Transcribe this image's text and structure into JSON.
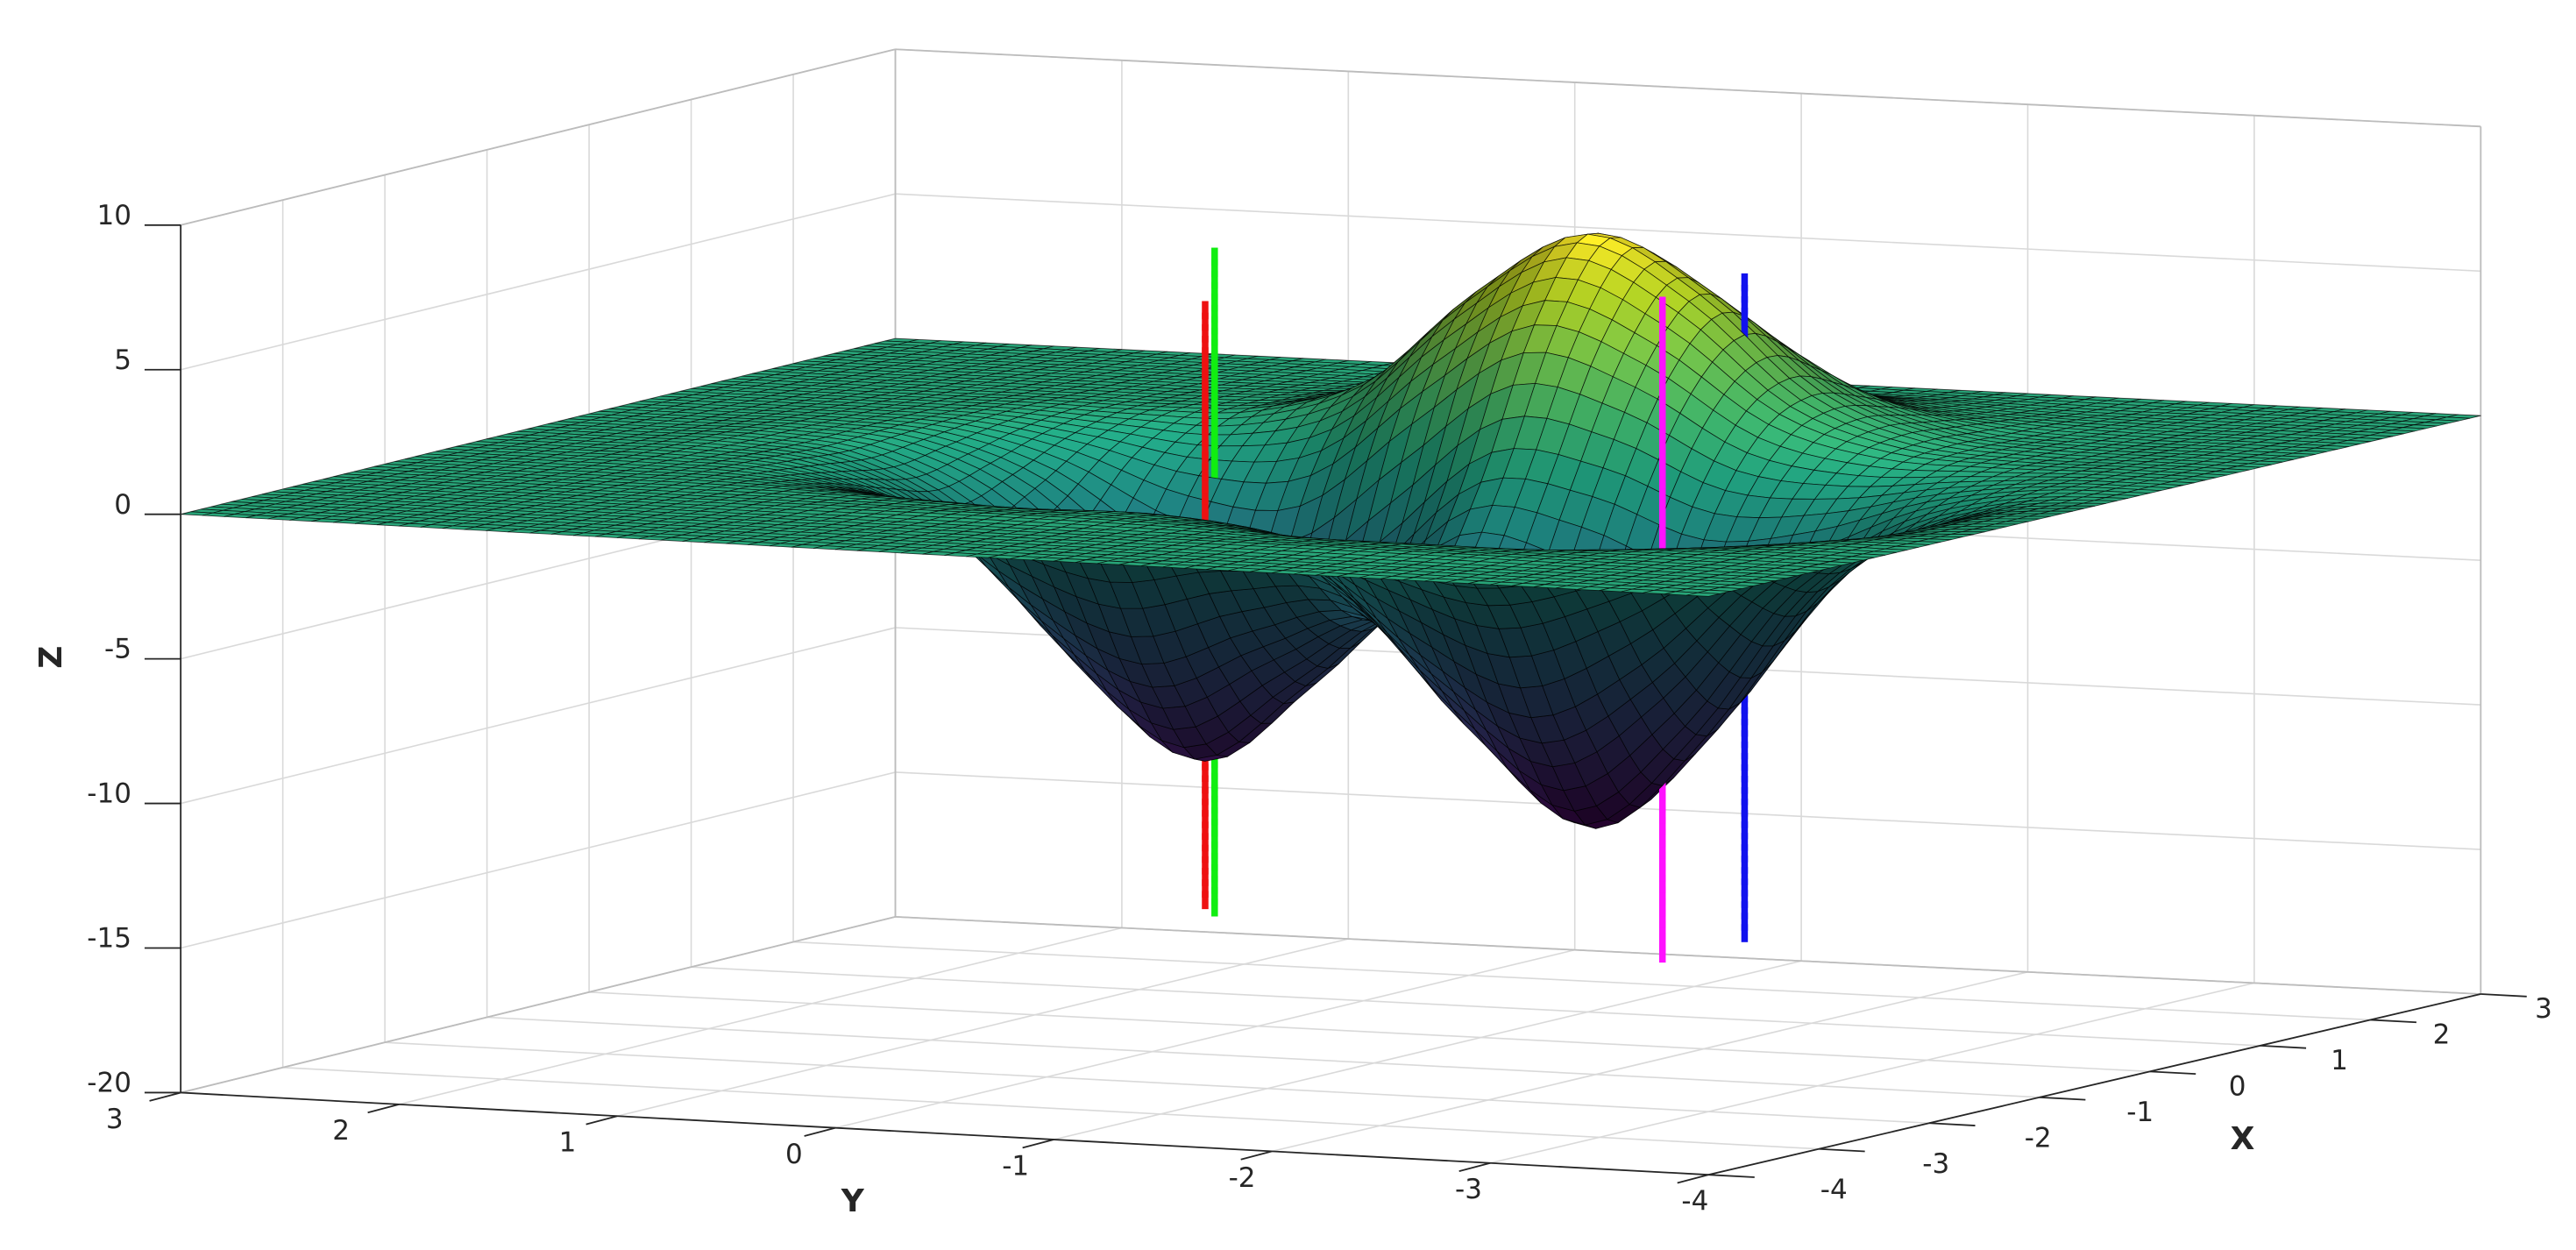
{
  "chart_data": {
    "type": "surface3d",
    "x": [
      -4,
      -3.5,
      -3,
      -2.5,
      -2,
      -1.5,
      -1,
      -0.5,
      0,
      0.5,
      1,
      1.5,
      2,
      2.5,
      3
    ],
    "y": [
      -4,
      -3.5,
      -3,
      -2.5,
      -2,
      -1.5,
      -1,
      -0.5,
      0,
      0.5,
      1,
      1.5,
      2,
      2.5,
      3
    ],
    "z": [
      [
        0,
        0,
        0,
        0,
        0,
        0,
        0,
        0,
        0,
        0,
        0,
        0,
        0,
        0,
        0
      ],
      [
        0,
        0,
        0,
        0,
        -0.1,
        -0.4,
        -0.5,
        -0.4,
        -0.1,
        0,
        0,
        0,
        0,
        0,
        0
      ],
      [
        0,
        0,
        0,
        -0.1,
        -0.7,
        -2,
        -2.9,
        -2,
        -0.7,
        -0.1,
        0,
        0,
        0,
        0,
        0
      ],
      [
        0,
        0,
        0,
        -0.4,
        -2,
        -5.8,
        -8.1,
        -5.8,
        -1.9,
        -0.1,
        0.3,
        0.2,
        0.1,
        0,
        0
      ],
      [
        0,
        0,
        0,
        -0.5,
        -2.9,
        -8.1,
        -11.5,
        -8.1,
        -2.4,
        0.7,
        1.7,
        1.2,
        0.4,
        0.1,
        0
      ],
      [
        0,
        0,
        0,
        -0.4,
        -2,
        -5.9,
        -8.5,
        -6,
        -1.1,
        3,
        5,
        3.5,
        1.2,
        0.2,
        0
      ],
      [
        0,
        0,
        0,
        -0.1,
        -0.8,
        -2.7,
        -4.7,
        -4.3,
        -0.8,
        4.2,
        6.9,
        5,
        1.7,
        0.3,
        0
      ],
      [
        0,
        0,
        0,
        0,
        -0.4,
        -2.2,
        -5.8,
        -7.5,
        -4.2,
        1.7,
        4.7,
        3.5,
        1.2,
        0.2,
        0
      ],
      [
        0,
        0,
        0,
        0,
        -0.5,
        -2.6,
        -7.4,
        -10.4,
        -7,
        -1.4,
        1.3,
        1.2,
        0.4,
        0.1,
        0
      ],
      [
        0,
        0,
        0,
        0,
        -0.3,
        -1.8,
        -5.3,
        -7.4,
        -5.2,
        -1.6,
        0,
        0.2,
        0.1,
        0,
        0
      ],
      [
        0,
        0,
        0,
        0,
        -0.1,
        -0.7,
        -1.8,
        -2.6,
        -1.8,
        -0.7,
        -0.1,
        0,
        0,
        0,
        0
      ],
      [
        0,
        0,
        0,
        0,
        0,
        -0.1,
        -0.3,
        -0.5,
        -0.3,
        -0.1,
        0,
        0,
        0,
        0,
        0
      ],
      [
        0,
        0,
        0,
        0,
        0,
        0,
        0,
        0,
        0,
        0,
        0,
        0,
        0,
        0,
        0
      ],
      [
        0,
        0,
        0,
        0,
        0,
        0,
        0,
        0,
        0,
        0,
        0,
        0,
        0,
        0,
        0
      ],
      [
        0,
        0,
        0,
        0,
        0,
        0,
        0,
        0,
        0,
        0,
        0,
        0,
        0,
        0,
        0
      ]
    ],
    "colormap": "viridis",
    "edgecolor": "#000000",
    "xlabel": "X",
    "ylabel": "Y",
    "zlabel": "Z",
    "xlabel_color": "#e8177d",
    "ylabel_color": "#000000",
    "zlabel_color": "#1f3fff",
    "xlim": [
      -4,
      3
    ],
    "ylim": [
      -4,
      3
    ],
    "zlim": [
      -20,
      10
    ],
    "xticks": [
      -4,
      -3,
      -2,
      -1,
      0,
      1,
      2,
      3
    ],
    "yticks": [
      -4,
      -3,
      -2,
      -1,
      0,
      1,
      2,
      3
    ],
    "zticks": [
      -20,
      -15,
      -10,
      -5,
      0,
      5,
      10
    ],
    "grid": true,
    "lines": [
      {
        "color": "#ee1111",
        "x": -0.5,
        "y": 0,
        "z": [
          -15.4,
          5.4
        ]
      },
      {
        "color": "#11ee11",
        "x": 0.5,
        "y": 0.43,
        "z": [
          -16.7,
          6.2
        ]
      },
      {
        "color": "#ff11ff",
        "x": -1,
        "y": -2.3,
        "z": [
          -15.9,
          6.9
        ]
      },
      {
        "color": "#1111ee",
        "x": 1,
        "y": -1.7,
        "z": [
          -17.2,
          5.7
        ]
      }
    ]
  }
}
